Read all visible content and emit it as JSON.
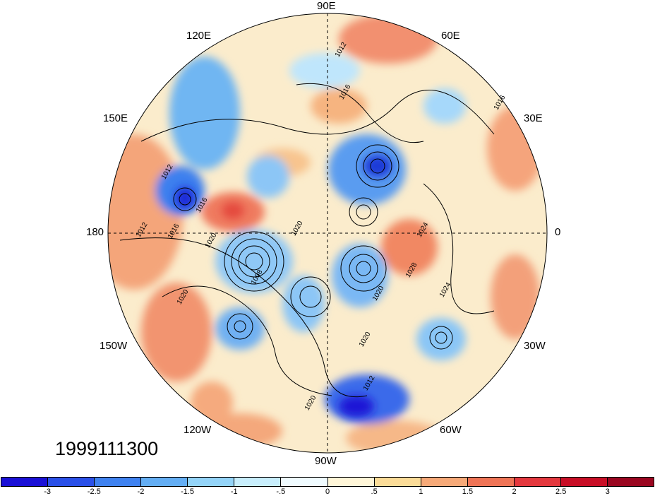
{
  "map": {
    "longitude_labels": {
      "top": "90E",
      "top_left": "120E",
      "top_right": "60E",
      "upper_left": "150E",
      "upper_right": "30E",
      "left": "180",
      "right": "0",
      "lower_left": "150W",
      "lower_right": "30W",
      "bottom_left": "120W",
      "bottom_right": "60W",
      "bottom": "90W"
    },
    "isobar_labels": [
      "1012",
      "1016",
      "1012",
      "1012",
      "1016",
      "1016",
      "1020",
      "1020",
      "1024",
      "1028",
      "1008",
      "1020",
      "1016",
      "1020",
      "1024",
      "1020",
      "1020",
      "1012"
    ],
    "projection": "north-polar-stereographic"
  },
  "date_label": "1999111300",
  "colorbar": {
    "colors": [
      "#1a10d6",
      "#2a50e8",
      "#3f82f0",
      "#64aef4",
      "#94d4f8",
      "#c8eefc",
      "#f0fbff",
      "#fff6d8",
      "#fbdc98",
      "#f6a978",
      "#ef7456",
      "#e4383e",
      "#c80e26",
      "#9a0620"
    ],
    "tick_labels": [
      "-3",
      "-2.5",
      "-2",
      "-1.5",
      "-1",
      "-.5",
      "0",
      ".5",
      "1",
      "1.5",
      "2",
      "2.5",
      "3"
    ]
  }
}
